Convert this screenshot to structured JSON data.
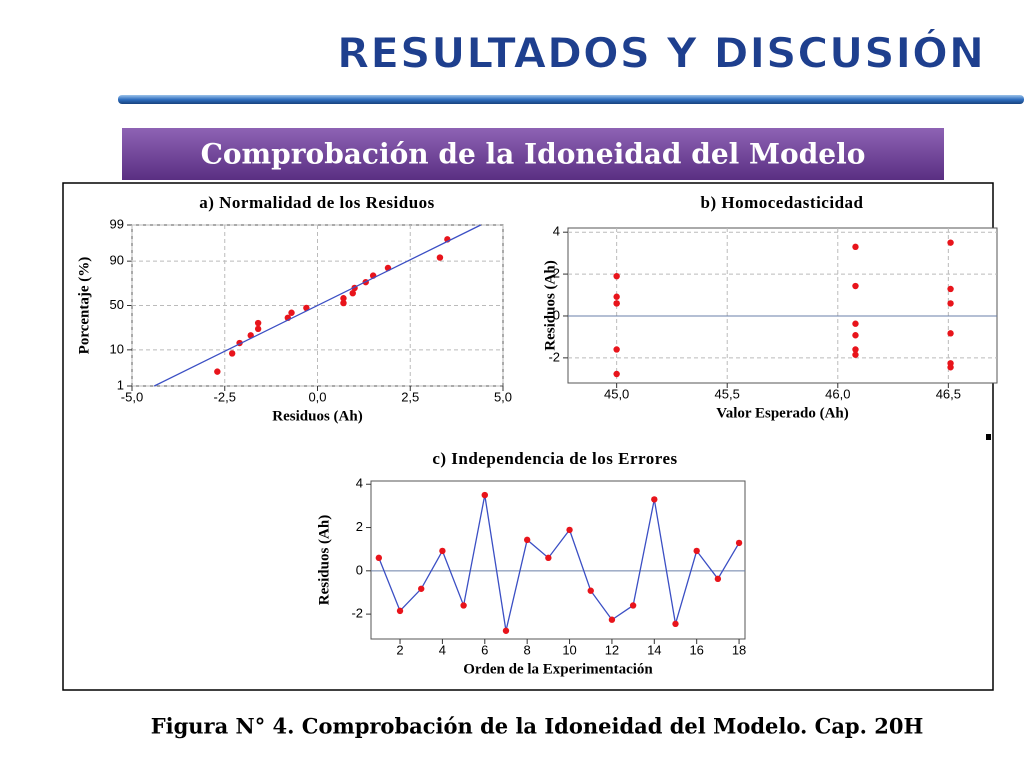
{
  "header": {
    "title": "RESULTADOS Y DISCUSIÓN",
    "banner": "Comprobación de la Idoneidad del Modelo",
    "caption": "Figura N° 4. Comprobación de la Idoneidad del Modelo. Cap. 20H"
  },
  "chart_data": [
    {
      "type": "scatter",
      "title": "a) Normalidad de los Residuos",
      "xlabel": "Residuos (Ah)",
      "ylabel": "Porcentaje (%)",
      "yscale": "probability",
      "grid": true,
      "xlim": [
        -5,
        5
      ],
      "ylim": [
        1,
        99
      ],
      "xticks": [
        {
          "value": -5,
          "label": "-5,0"
        },
        {
          "value": -2.5,
          "label": "-2,5"
        },
        {
          "value": 0,
          "label": "0,0"
        },
        {
          "value": 2.5,
          "label": "2,5"
        },
        {
          "value": 5,
          "label": "5,0"
        }
      ],
      "yticks": [
        1,
        10,
        50,
        90,
        99
      ],
      "series": [
        {
          "style": "markers",
          "color": "#e8141b",
          "x": [
            -2.7,
            -2.3,
            -2.1,
            -1.8,
            -1.6,
            -1.6,
            -0.8,
            -0.7,
            -0.3,
            0.7,
            0.7,
            0.95,
            1.0,
            1.3,
            1.5,
            1.9,
            3.3,
            3.5
          ],
          "values": [
            2.8,
            8.3,
            13.9,
            19.4,
            25,
            30.6,
            36.1,
            41.7,
            47.2,
            52.8,
            58.3,
            63.9,
            69.4,
            75,
            80.6,
            86.1,
            91.7,
            97.2
          ]
        },
        {
          "style": "line",
          "color": "#3b4fc4",
          "x": [
            -4.4,
            4.4
          ],
          "values": [
            1,
            99
          ]
        }
      ]
    },
    {
      "type": "scatter",
      "title": "b) Homocedasticidad",
      "xlabel": "Valor Esperado (Ah)",
      "ylabel": "Residuos (Ah)",
      "grid": true,
      "reference_line": 0,
      "xlim": [
        44.78,
        46.72
      ],
      "ylim": [
        -3.2,
        4.2
      ],
      "xticks": [
        {
          "value": 45,
          "label": "45,0"
        },
        {
          "value": 45.5,
          "label": "45,5"
        },
        {
          "value": 46,
          "label": "46,0"
        },
        {
          "value": 46.5,
          "label": "46,5"
        }
      ],
      "yticks": [
        -2,
        0,
        2,
        4
      ],
      "series": [
        {
          "style": "markers",
          "color": "#e8141b",
          "x": [
            45,
            45,
            45,
            45,
            45,
            45,
            46.08,
            46.08,
            46.08,
            46.08,
            46.08,
            46.08,
            46.51,
            46.51,
            46.51,
            46.51,
            46.51,
            46.51
          ],
          "values": [
            1.9,
            0.92,
            0.6,
            0.6,
            -1.6,
            -2.77,
            3.3,
            1.43,
            -0.37,
            -0.92,
            -1.6,
            -1.85,
            3.5,
            1.29,
            0.6,
            -0.83,
            -2.26,
            -2.45
          ]
        }
      ]
    },
    {
      "type": "line",
      "title": "c) Independencia de los Errores",
      "xlabel": "Orden de la Experimentación",
      "ylabel": "Residuos (Ah)",
      "grid": false,
      "reference_line": 0,
      "xlim": [
        0.63,
        18.28
      ],
      "ylim": [
        -3.15,
        4.15
      ],
      "xticks": [
        2,
        4,
        6,
        8,
        10,
        12,
        14,
        16,
        18
      ],
      "yticks": [
        -2,
        0,
        2,
        4
      ],
      "series": [
        {
          "style": "line+markers",
          "color": "#3b4fc4",
          "marker_color": "#e8141b",
          "x": [
            1,
            2,
            3,
            4,
            5,
            6,
            7,
            8,
            9,
            10,
            11,
            12,
            13,
            14,
            15,
            16,
            17,
            18
          ],
          "values": [
            0.6,
            -1.85,
            -0.83,
            0.92,
            -1.6,
            3.5,
            -2.77,
            1.43,
            0.6,
            1.89,
            -0.92,
            -2.26,
            -1.6,
            3.3,
            -2.45,
            0.92,
            -0.37,
            1.29
          ]
        }
      ]
    }
  ]
}
